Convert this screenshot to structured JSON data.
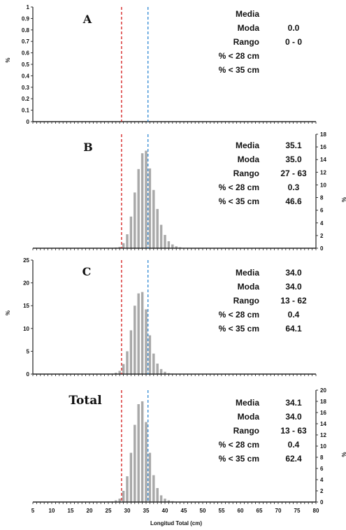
{
  "colors": {
    "red": "#d62828",
    "blue": "#3a8fd6",
    "bar": "#a9a9a9",
    "axis": "#222222"
  },
  "xlabel": "Longitud Total (cm)",
  "x_ticks": [
    5,
    10,
    15,
    20,
    25,
    30,
    35,
    40,
    45,
    50,
    55,
    60,
    65,
    70,
    75,
    80
  ],
  "chart_data": [
    {
      "type": "bar",
      "panel": "A",
      "ylabel": "%",
      "y_axis_side": "left",
      "ylim": [
        0,
        1
      ],
      "y_ticks": [
        "0",
        "0.1",
        "0.2",
        "0.3",
        "0.4",
        "0.5",
        "0.6",
        "0.7",
        "0.8",
        "0.9",
        "1"
      ],
      "x": [],
      "values": [],
      "stats": [
        {
          "label": "Media",
          "value": "",
          "color": "black"
        },
        {
          "label": "Moda",
          "value": "0.0",
          "color": "black"
        },
        {
          "label": "Rango",
          "value": "0 - 0",
          "color": "black"
        },
        {
          "label": "% < 28 cm",
          "value": "",
          "color": "red"
        },
        {
          "label": "% < 35 cm",
          "value": "",
          "color": "blue"
        }
      ],
      "ref_lines": [
        {
          "x": 28.5,
          "color": "red"
        },
        {
          "x": 35.5,
          "color": "blue"
        }
      ]
    },
    {
      "type": "bar",
      "panel": "B",
      "ylabel": "%",
      "y_axis_side": "right",
      "ylim": [
        0,
        18
      ],
      "y_ticks": [
        "0",
        "2",
        "4",
        "6",
        "8",
        "10",
        "12",
        "14",
        "16",
        "18"
      ],
      "x": [
        27,
        28,
        29,
        30,
        31,
        32,
        33,
        34,
        35,
        36,
        37,
        38,
        39,
        40,
        41,
        42,
        43,
        44,
        45
      ],
      "values": [
        0.1,
        0.2,
        0.8,
        2.2,
        5.0,
        8.8,
        12.5,
        15.0,
        15.4,
        12.6,
        9.2,
        6.2,
        3.7,
        2.1,
        1.1,
        0.6,
        0.3,
        0.15,
        0.05
      ],
      "stats": [
        {
          "label": "Media",
          "value": "35.1",
          "color": "black"
        },
        {
          "label": "Moda",
          "value": "35.0",
          "color": "black"
        },
        {
          "label": "Rango",
          "value": "27 - 63",
          "color": "black"
        },
        {
          "label": "% < 28 cm",
          "value": "0.3",
          "color": "red"
        },
        {
          "label": "% < 35 cm",
          "value": "46.6",
          "color": "blue"
        }
      ],
      "ref_lines": [
        {
          "x": 28.5,
          "color": "red"
        },
        {
          "x": 35.5,
          "color": "blue"
        }
      ]
    },
    {
      "type": "bar",
      "panel": "C",
      "ylabel": "%",
      "y_axis_side": "left",
      "ylim": [
        0,
        25
      ],
      "y_ticks": [
        "0",
        "5",
        "10",
        "15",
        "20",
        "25"
      ],
      "x": [
        13,
        20,
        25,
        26,
        27,
        28,
        29,
        30,
        31,
        32,
        33,
        34,
        35,
        36,
        37,
        38,
        39,
        40,
        41,
        42
      ],
      "values": [
        0.05,
        0.05,
        0.1,
        0.1,
        0.3,
        0.7,
        2.2,
        5.0,
        9.6,
        15.0,
        17.7,
        18.0,
        14.2,
        8.5,
        4.5,
        2.3,
        1.1,
        0.5,
        0.2,
        0.1
      ],
      "stats": [
        {
          "label": "Media",
          "value": "34.0",
          "color": "black"
        },
        {
          "label": "Moda",
          "value": "34.0",
          "color": "black"
        },
        {
          "label": "Rango",
          "value": "13 - 62",
          "color": "black"
        },
        {
          "label": "% < 28 cm",
          "value": "0.4",
          "color": "red"
        },
        {
          "label": "% < 35 cm",
          "value": "64.1",
          "color": "blue"
        }
      ],
      "ref_lines": [
        {
          "x": 28.5,
          "color": "red"
        },
        {
          "x": 35.5,
          "color": "blue"
        }
      ]
    },
    {
      "type": "bar",
      "panel": "Total",
      "ylabel": "%",
      "y_axis_side": "right",
      "ylim": [
        0,
        20
      ],
      "y_ticks": [
        "0",
        "2",
        "4",
        "6",
        "8",
        "10",
        "12",
        "14",
        "16",
        "18",
        "20"
      ],
      "x": [
        13,
        25,
        26,
        27,
        28,
        29,
        30,
        31,
        32,
        33,
        34,
        35,
        36,
        37,
        38,
        39,
        40,
        41,
        42,
        43
      ],
      "values": [
        0.05,
        0.1,
        0.1,
        0.3,
        0.6,
        2.0,
        4.6,
        8.8,
        13.8,
        17.5,
        18.0,
        14.3,
        8.8,
        4.8,
        2.5,
        1.2,
        0.6,
        0.3,
        0.15,
        0.05
      ],
      "stats": [
        {
          "label": "Media",
          "value": "34.1",
          "color": "black"
        },
        {
          "label": "Moda",
          "value": "34.0",
          "color": "black"
        },
        {
          "label": "Rango",
          "value": "13 - 63",
          "color": "black"
        },
        {
          "label": "% < 28 cm",
          "value": "0.4",
          "color": "red"
        },
        {
          "label": "% < 35 cm",
          "value": "62.4",
          "color": "blue"
        }
      ],
      "ref_lines": [
        {
          "x": 28.5,
          "color": "red"
        },
        {
          "x": 35.5,
          "color": "blue"
        }
      ]
    }
  ]
}
